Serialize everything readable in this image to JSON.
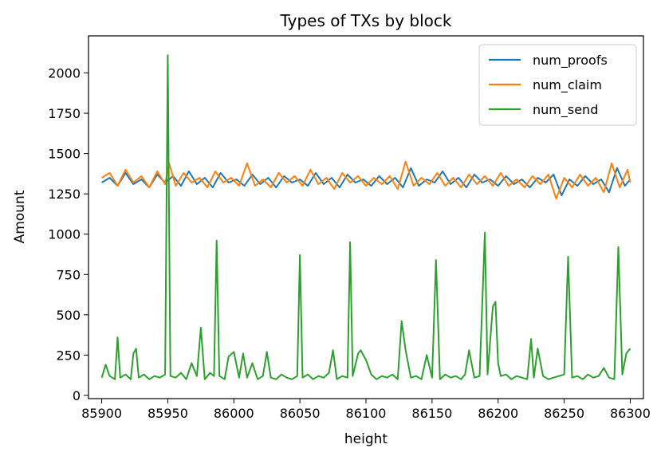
{
  "chart_data": {
    "type": "line",
    "title": "Types of TXs by block",
    "xlabel": "height",
    "ylabel": "Amount",
    "xlim": [
      85890,
      86310
    ],
    "ylim": [
      -20,
      2230
    ],
    "xticks": [
      85900,
      85950,
      86000,
      86050,
      86100,
      86150,
      86200,
      86250,
      86300
    ],
    "yticks": [
      0,
      250,
      500,
      750,
      1000,
      1250,
      1500,
      1750,
      2000
    ],
    "grid": false,
    "legend_position": "top-right",
    "series": [
      {
        "name": "num_proofs",
        "color": "#1f77b4",
        "x": [
          85900,
          85906,
          85912,
          85918,
          85924,
          85930,
          85936,
          85942,
          85948,
          85954,
          85960,
          85966,
          85972,
          85978,
          85984,
          85990,
          85996,
          86002,
          86008,
          86014,
          86020,
          86026,
          86032,
          86038,
          86044,
          86050,
          86056,
          86062,
          86068,
          86074,
          86080,
          86086,
          86092,
          86098,
          86104,
          86110,
          86116,
          86122,
          86128,
          86134,
          86140,
          86146,
          86152,
          86158,
          86164,
          86170,
          86176,
          86182,
          86188,
          86194,
          86200,
          86206,
          86212,
          86218,
          86224,
          86230,
          86236,
          86242,
          86248,
          86254,
          86260,
          86266,
          86272,
          86278,
          86284,
          86290,
          86296,
          86300
        ],
        "y": [
          1320,
          1350,
          1300,
          1380,
          1310,
          1340,
          1290,
          1370,
          1320,
          1360,
          1300,
          1390,
          1310,
          1350,
          1290,
          1380,
          1320,
          1340,
          1300,
          1370,
          1310,
          1350,
          1290,
          1360,
          1320,
          1340,
          1300,
          1380,
          1310,
          1350,
          1290,
          1370,
          1320,
          1340,
          1300,
          1360,
          1310,
          1350,
          1290,
          1410,
          1300,
          1340,
          1320,
          1390,
          1310,
          1350,
          1290,
          1370,
          1320,
          1340,
          1300,
          1360,
          1310,
          1340,
          1290,
          1350,
          1320,
          1370,
          1240,
          1340,
          1300,
          1360,
          1310,
          1340,
          1260,
          1410,
          1300,
          1340
        ]
      },
      {
        "name": "num_claim",
        "color": "#ff7f0e",
        "x": [
          85900,
          85906,
          85912,
          85918,
          85924,
          85930,
          85936,
          85942,
          85948,
          85951,
          85956,
          85962,
          85968,
          85974,
          85980,
          85986,
          85992,
          85998,
          86004,
          86010,
          86016,
          86022,
          86028,
          86034,
          86040,
          86046,
          86052,
          86058,
          86064,
          86070,
          86076,
          86082,
          86088,
          86094,
          86100,
          86106,
          86112,
          86118,
          86124,
          86130,
          86136,
          86142,
          86148,
          86154,
          86160,
          86166,
          86172,
          86178,
          86184,
          86190,
          86196,
          86202,
          86208,
          86214,
          86220,
          86226,
          86232,
          86238,
          86244,
          86250,
          86256,
          86262,
          86268,
          86274,
          86280,
          86286,
          86292,
          86298,
          86300
        ],
        "y": [
          1350,
          1380,
          1300,
          1400,
          1320,
          1360,
          1290,
          1390,
          1310,
          1440,
          1300,
          1380,
          1320,
          1350,
          1290,
          1390,
          1320,
          1350,
          1300,
          1440,
          1300,
          1340,
          1290,
          1380,
          1320,
          1360,
          1300,
          1400,
          1310,
          1350,
          1280,
          1380,
          1320,
          1360,
          1300,
          1350,
          1310,
          1360,
          1280,
          1450,
          1300,
          1350,
          1310,
          1380,
          1300,
          1350,
          1290,
          1370,
          1310,
          1360,
          1300,
          1380,
          1300,
          1340,
          1290,
          1360,
          1310,
          1370,
          1220,
          1350,
          1290,
          1370,
          1300,
          1350,
          1260,
          1440,
          1290,
          1400,
          1320
        ]
      },
      {
        "name": "num_send",
        "color": "#2ca02c",
        "x": [
          85900,
          85903,
          85906,
          85910,
          85912,
          85914,
          85918,
          85922,
          85924,
          85926,
          85928,
          85932,
          85936,
          85940,
          85944,
          85948,
          85950,
          85952,
          85956,
          85960,
          85964,
          85968,
          85972,
          85975,
          85978,
          85982,
          85985,
          85987,
          85989,
          85993,
          85996,
          86000,
          86004,
          86007,
          86010,
          86014,
          86018,
          86022,
          86025,
          86028,
          86032,
          86036,
          86040,
          86044,
          86048,
          86050,
          86052,
          86056,
          86060,
          86064,
          86068,
          86072,
          86075,
          86078,
          86082,
          86086,
          86088,
          86090,
          86094,
          86096,
          86100,
          86104,
          86108,
          86112,
          86116,
          86120,
          86124,
          86127,
          86130,
          86134,
          86138,
          86142,
          86146,
          86150,
          86153,
          86156,
          86160,
          86164,
          86168,
          86172,
          86175,
          86178,
          86182,
          86186,
          86190,
          86192,
          86196,
          86198,
          86200,
          86202,
          86206,
          86210,
          86214,
          86218,
          86222,
          86225,
          86227,
          86230,
          86234,
          86238,
          86242,
          86246,
          86250,
          86253,
          86256,
          86260,
          86264,
          86268,
          86272,
          86276,
          86280,
          86284,
          86288,
          86291,
          86294,
          86297,
          86300
        ],
        "y": [
          110,
          190,
          120,
          100,
          360,
          110,
          130,
          100,
          260,
          290,
          110,
          130,
          100,
          120,
          110,
          130,
          2110,
          120,
          110,
          140,
          100,
          200,
          120,
          420,
          100,
          140,
          120,
          960,
          120,
          100,
          240,
          270,
          110,
          260,
          110,
          200,
          100,
          120,
          270,
          110,
          100,
          130,
          110,
          100,
          120,
          870,
          110,
          130,
          100,
          120,
          110,
          140,
          280,
          100,
          120,
          110,
          950,
          120,
          260,
          280,
          220,
          130,
          100,
          120,
          110,
          130,
          100,
          460,
          280,
          110,
          120,
          100,
          250,
          110,
          840,
          100,
          130,
          110,
          120,
          100,
          130,
          280,
          110,
          120,
          1010,
          130,
          550,
          580,
          200,
          120,
          130,
          100,
          120,
          110,
          100,
          350,
          110,
          290,
          120,
          100,
          110,
          120,
          130,
          860,
          110,
          120,
          100,
          130,
          110,
          120,
          170,
          110,
          100,
          920,
          130,
          260,
          290
        ]
      }
    ]
  }
}
